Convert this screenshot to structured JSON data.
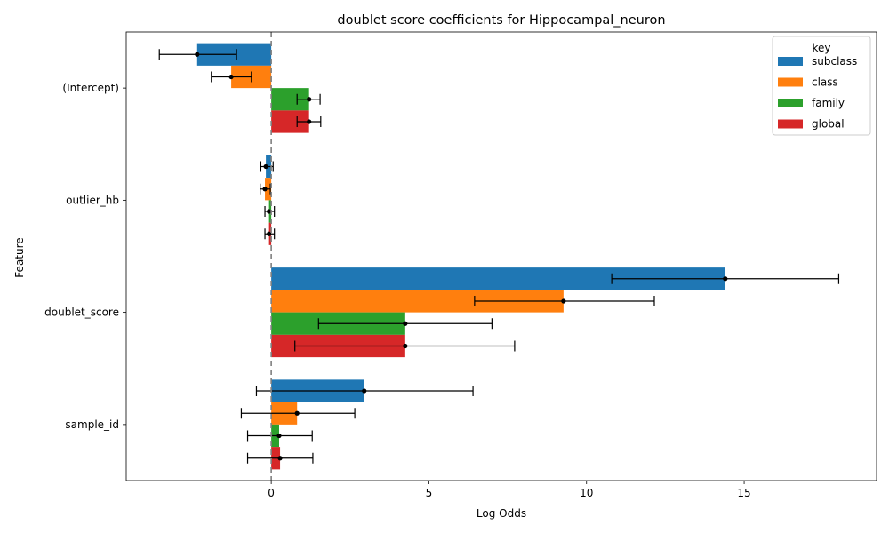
{
  "chart_data": {
    "type": "bar",
    "orientation": "horizontal",
    "title": "doublet score coefficients for Hippocampal_neuron",
    "xlabel": "Log Odds",
    "ylabel": "Feature",
    "categories": [
      "(Intercept)",
      "outlier_hb",
      "doublet_score",
      "sample_id"
    ],
    "xlim": [
      -4.6,
      19.2
    ],
    "xticks": [
      0,
      5,
      10,
      15
    ],
    "zero_line": "dashed",
    "grid": false,
    "legend": {
      "title": "key",
      "placement": "top-right"
    },
    "series": [
      {
        "name": "subclass",
        "color": "#1f77b4",
        "values": [
          -2.35,
          -0.17,
          14.4,
          2.95
        ],
        "ci_low": [
          -3.55,
          -0.33,
          10.8,
          -0.47
        ],
        "ci_high": [
          -1.1,
          0.06,
          18.0,
          6.4
        ]
      },
      {
        "name": "class",
        "color": "#ff7f0e",
        "values": [
          -1.27,
          -0.2,
          9.27,
          0.82
        ],
        "ci_low": [
          -1.9,
          -0.35,
          6.45,
          -0.95
        ],
        "ci_high": [
          -0.63,
          -0.03,
          12.15,
          2.65
        ]
      },
      {
        "name": "family",
        "color": "#2ca02c",
        "values": [
          1.2,
          -0.07,
          4.25,
          0.25
        ],
        "ci_low": [
          0.82,
          -0.2,
          1.5,
          -0.75
        ],
        "ci_high": [
          1.55,
          0.1,
          7.0,
          1.3
        ]
      },
      {
        "name": "global",
        "color": "#d62728",
        "values": [
          1.2,
          -0.07,
          4.25,
          0.28
        ],
        "ci_low": [
          0.82,
          -0.2,
          0.75,
          -0.75
        ],
        "ci_high": [
          1.57,
          0.1,
          7.72,
          1.32
        ]
      }
    ]
  }
}
